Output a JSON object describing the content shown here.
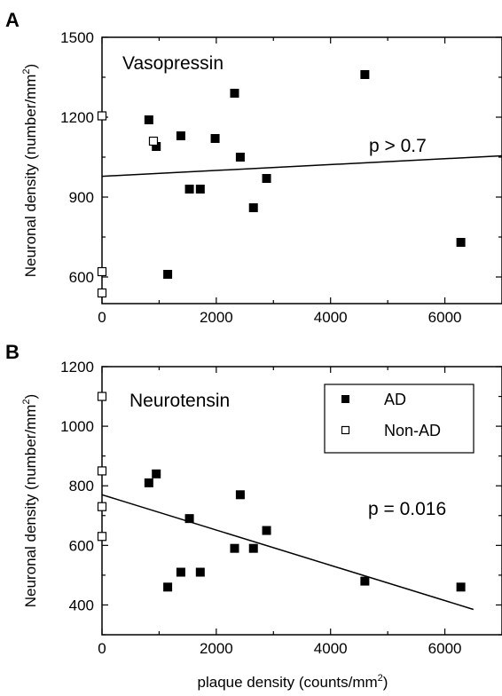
{
  "chart_data": [
    {
      "type": "scatter",
      "panel_label": "A",
      "annotation": "Vasopressin",
      "stat_text": "p > 0.7",
      "ylabel": "Neuronal density (number/mm",
      "ylabel_sup": "2",
      "ylabel_close": ")",
      "xlim": [
        0,
        7000
      ],
      "ylim": [
        500,
        1500
      ],
      "xticks": [
        0,
        2000,
        4000,
        6000
      ],
      "yticks": [
        600,
        900,
        1200,
        1500
      ],
      "grid": false,
      "series": [
        {
          "name": "AD",
          "marker": "filled-square",
          "points": [
            [
              820,
              1190
            ],
            [
              950,
              1090
            ],
            [
              1150,
              610
            ],
            [
              1380,
              1130
            ],
            [
              1530,
              930
            ],
            [
              1720,
              930
            ],
            [
              1980,
              1120
            ],
            [
              2320,
              1290
            ],
            [
              2420,
              1050
            ],
            [
              2650,
              860
            ],
            [
              2880,
              970
            ],
            [
              4600,
              1360
            ],
            [
              6280,
              730
            ]
          ]
        },
        {
          "name": "Non-AD",
          "marker": "open-square",
          "points": [
            [
              0,
              1205
            ],
            [
              0,
              620
            ],
            [
              0,
              540
            ],
            [
              900,
              1110
            ]
          ]
        }
      ],
      "fit_line": {
        "x": [
          0,
          7000
        ],
        "y": [
          978,
          1055
        ]
      }
    },
    {
      "type": "scatter",
      "panel_label": "B",
      "annotation": "Neurotensin",
      "stat_text": "p = 0.016",
      "ylabel": "Neuronal density (number/mm",
      "ylabel_sup": "2",
      "ylabel_close": ")",
      "xlabel": "plaque density (counts/mm",
      "xlabel_sup": "2",
      "xlabel_close": ")",
      "xlim": [
        0,
        7000
      ],
      "ylim": [
        300,
        1200
      ],
      "xticks": [
        0,
        2000,
        4000,
        6000
      ],
      "yticks": [
        400,
        600,
        800,
        1000,
        1200
      ],
      "grid": false,
      "legend_position": "top-right",
      "series": [
        {
          "name": "AD",
          "marker": "filled-square",
          "points": [
            [
              820,
              810
            ],
            [
              950,
              840
            ],
            [
              1150,
              460
            ],
            [
              1380,
              510
            ],
            [
              1530,
              690
            ],
            [
              1720,
              510
            ],
            [
              2320,
              590
            ],
            [
              2420,
              770
            ],
            [
              2650,
              590
            ],
            [
              2880,
              650
            ],
            [
              4600,
              480
            ],
            [
              6280,
              460
            ]
          ]
        },
        {
          "name": "Non-AD",
          "marker": "open-square",
          "points": [
            [
              0,
              1100
            ],
            [
              0,
              850
            ],
            [
              0,
              730
            ],
            [
              0,
              630
            ]
          ]
        }
      ],
      "fit_line": {
        "x": [
          0,
          6500
        ],
        "y": [
          770,
          385
        ]
      }
    }
  ]
}
